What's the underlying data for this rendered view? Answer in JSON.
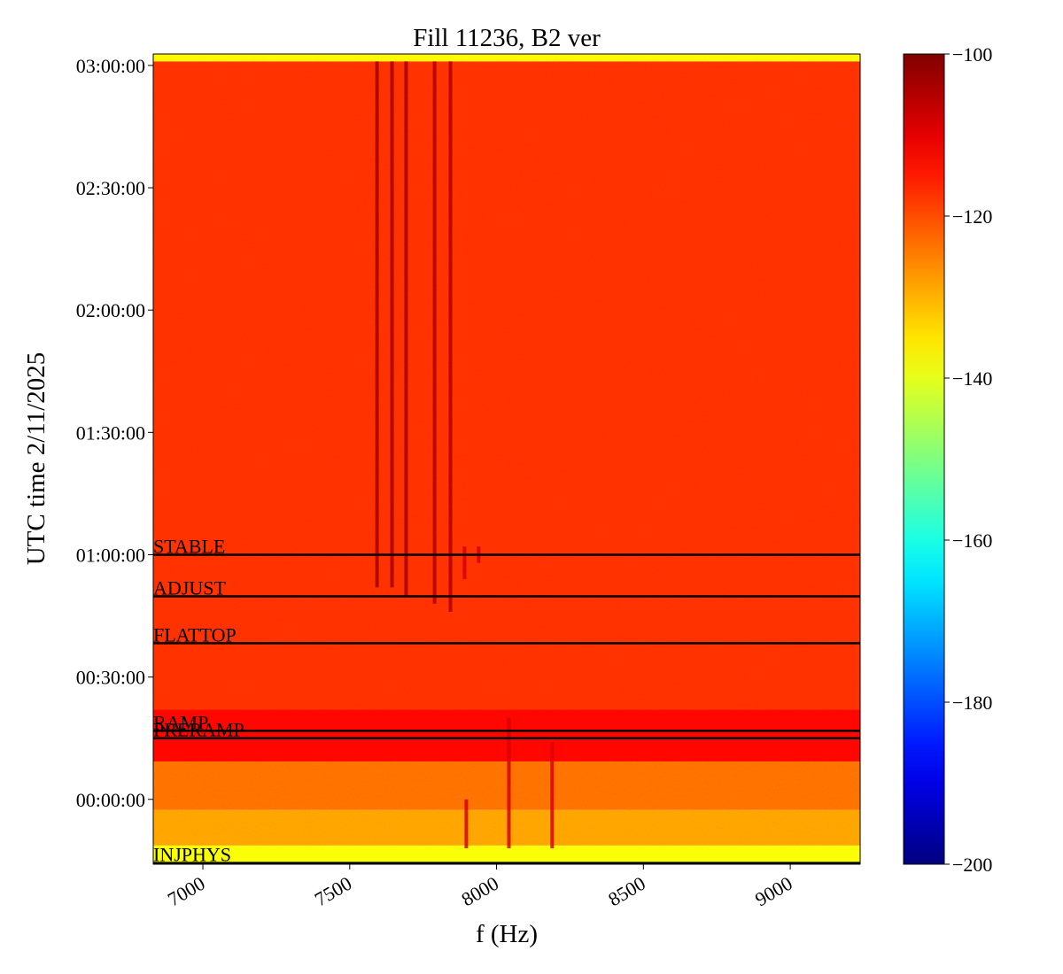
{
  "chart_data": {
    "type": "spectrogram",
    "title": "Fill 11236, B2 ver",
    "xlabel": "f (Hz)",
    "ylabel": "UTC time 2/11/2025",
    "xlim": [
      6831,
      9238
    ],
    "xticks": [
      7000,
      7500,
      8000,
      8500,
      9000
    ],
    "ylim": [
      -15.9,
      182.8
    ],
    "yticks": [
      {
        "value": 0,
        "label": "00:00:00"
      },
      {
        "value": 30,
        "label": "00:30:00"
      },
      {
        "value": 60,
        "label": "01:00:00"
      },
      {
        "value": 90,
        "label": "01:30:00"
      },
      {
        "value": 120,
        "label": "02:00:00"
      },
      {
        "value": 150,
        "label": "02:30:00"
      },
      {
        "value": 180,
        "label": "03:00:00"
      }
    ],
    "y_edges": [
      -15.9,
      -11.3,
      -2.6,
      9.3,
      22,
      181,
      182.8
    ],
    "levels": [
      -138,
      -128,
      -123,
      -113,
      -117,
      -137
    ],
    "spectral_lines": {
      "freq": [
        7593,
        7644,
        7692,
        7789,
        7843,
        7891,
        7939,
        8042,
        8189,
        7897
      ],
      "start": [
        52,
        52,
        50,
        48,
        46,
        54,
        58,
        -12,
        -12,
        -12
      ],
      "end": [
        181,
        181,
        181,
        181,
        181,
        62,
        62,
        20,
        14,
        0
      ],
      "level": [
        -103,
        -103,
        -103,
        -104,
        -104,
        -108,
        -108,
        -108,
        -109,
        -108
      ]
    },
    "events": {
      "names": [
        "STABLE",
        "ADJUST",
        "FLATTOP",
        "RAMP",
        "PRERAMP",
        "INJPHYS"
      ],
      "times": [
        60,
        49.8,
        38.3,
        16.8,
        15.0,
        -15.6
      ]
    },
    "colorbar": {
      "lim": [
        -200,
        -100
      ],
      "ticks": [
        {
          "value": -100,
          "label": "−100"
        },
        {
          "value": -120,
          "label": "−120"
        },
        {
          "value": -140,
          "label": "−140"
        },
        {
          "value": -160,
          "label": "−160"
        },
        {
          "value": -180,
          "label": "−180"
        },
        {
          "value": -200,
          "label": "−200"
        }
      ],
      "colormap": "jet"
    }
  }
}
